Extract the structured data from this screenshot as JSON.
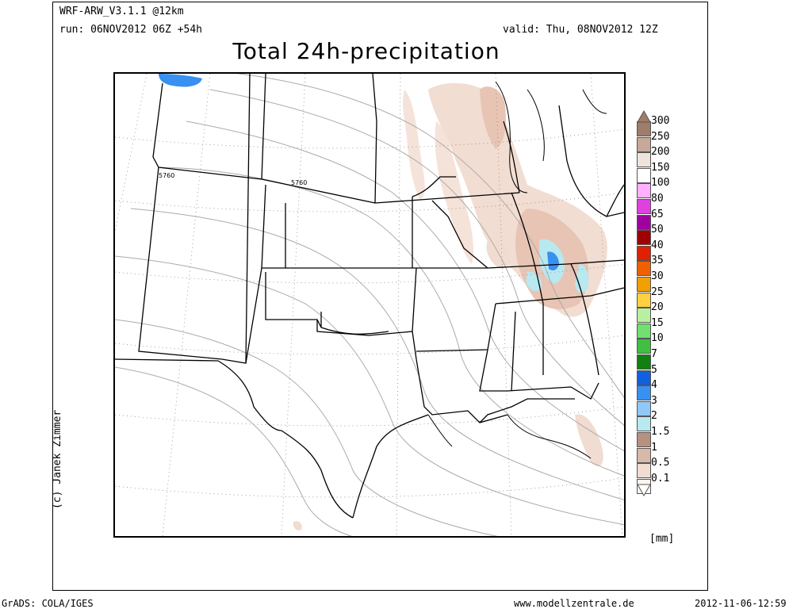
{
  "header": {
    "model": "WRF-ARW_V3.1.1 @12km",
    "run": "run: 06NOV2012 06Z +54h",
    "valid": "valid: Thu, 08NOV2012 12Z",
    "title": "Total 24h-precipitation"
  },
  "map": {
    "contour_labels": [
      "5760",
      "5760"
    ],
    "credit": "(c) Janek Zimmer",
    "unit": "[mm]"
  },
  "legend": [
    {
      "label": "300",
      "color": "#a07c6a"
    },
    {
      "label": "250",
      "color": "#c8a898"
    },
    {
      "label": "200",
      "color": "#efe3dc"
    },
    {
      "label": "150",
      "color": "#ffffff"
    },
    {
      "label": "100",
      "color": "#ffb0ff"
    },
    {
      "label": "80",
      "color": "#e040e0"
    },
    {
      "label": "65",
      "color": "#a000a0"
    },
    {
      "label": "50",
      "color": "#a00000"
    },
    {
      "label": "40",
      "color": "#e02000"
    },
    {
      "label": "35",
      "color": "#f06000"
    },
    {
      "label": "30",
      "color": "#f0a000"
    },
    {
      "label": "25",
      "color": "#ffd040"
    },
    {
      "label": "20",
      "color": "#b8f0a0"
    },
    {
      "label": "15",
      "color": "#70e070"
    },
    {
      "label": "10",
      "color": "#40c040"
    },
    {
      "label": "7",
      "color": "#108010"
    },
    {
      "label": "5",
      "color": "#1060e0"
    },
    {
      "label": "4",
      "color": "#3890f0"
    },
    {
      "label": "3",
      "color": "#90c8f8"
    },
    {
      "label": "2",
      "color": "#b8e8f0"
    },
    {
      "label": "1.5",
      "color": "#b89080"
    },
    {
      "label": "1",
      "color": "#d8b8a8"
    },
    {
      "label": "0.5",
      "color": "#f0dcd0"
    },
    {
      "label": "0.1",
      "color": "#fff4ee"
    }
  ],
  "footer": {
    "left": "GrADS: COLA/IGES",
    "center": "www.modellzentrale.de",
    "right": "2012-11-06-12:59"
  }
}
